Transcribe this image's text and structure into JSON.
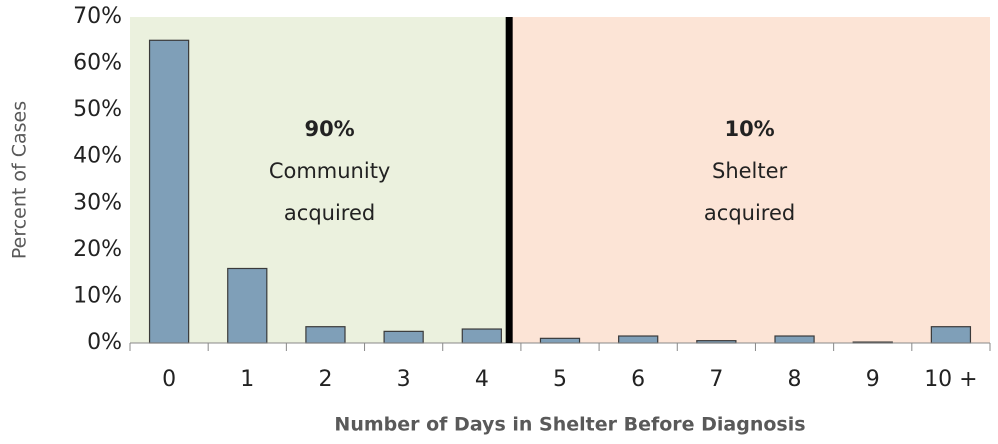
{
  "chart_data": {
    "type": "bar",
    "categories": [
      "0",
      "1",
      "2",
      "3",
      "4",
      "5",
      "6",
      "7",
      "8",
      "9",
      "10 +"
    ],
    "values": [
      65,
      16,
      3.5,
      2.5,
      3,
      1,
      1.5,
      0.5,
      1.5,
      0.2,
      3.5
    ],
    "color": "#7f9fb8",
    "xlabel": "Number of Days in Shelter Before Diagnosis",
    "ylabel": "Percent of Cases",
    "ylim": [
      0,
      70
    ],
    "yticks": [
      {
        "value": 0,
        "label": "0%"
      },
      {
        "value": 10,
        "label": "10%"
      },
      {
        "value": 20,
        "label": "20%"
      },
      {
        "value": 30,
        "label": "30%"
      },
      {
        "value": 40,
        "label": "40%"
      },
      {
        "value": 50,
        "label": "50%"
      },
      {
        "value": 60,
        "label": "60%"
      },
      {
        "value": 70,
        "label": "70%"
      }
    ],
    "annotations": [
      {
        "label": "90%",
        "text": [
          "Community",
          "acquired"
        ]
      },
      {
        "label": "10%",
        "text": [
          "Shelter",
          "acquired"
        ]
      }
    ]
  }
}
